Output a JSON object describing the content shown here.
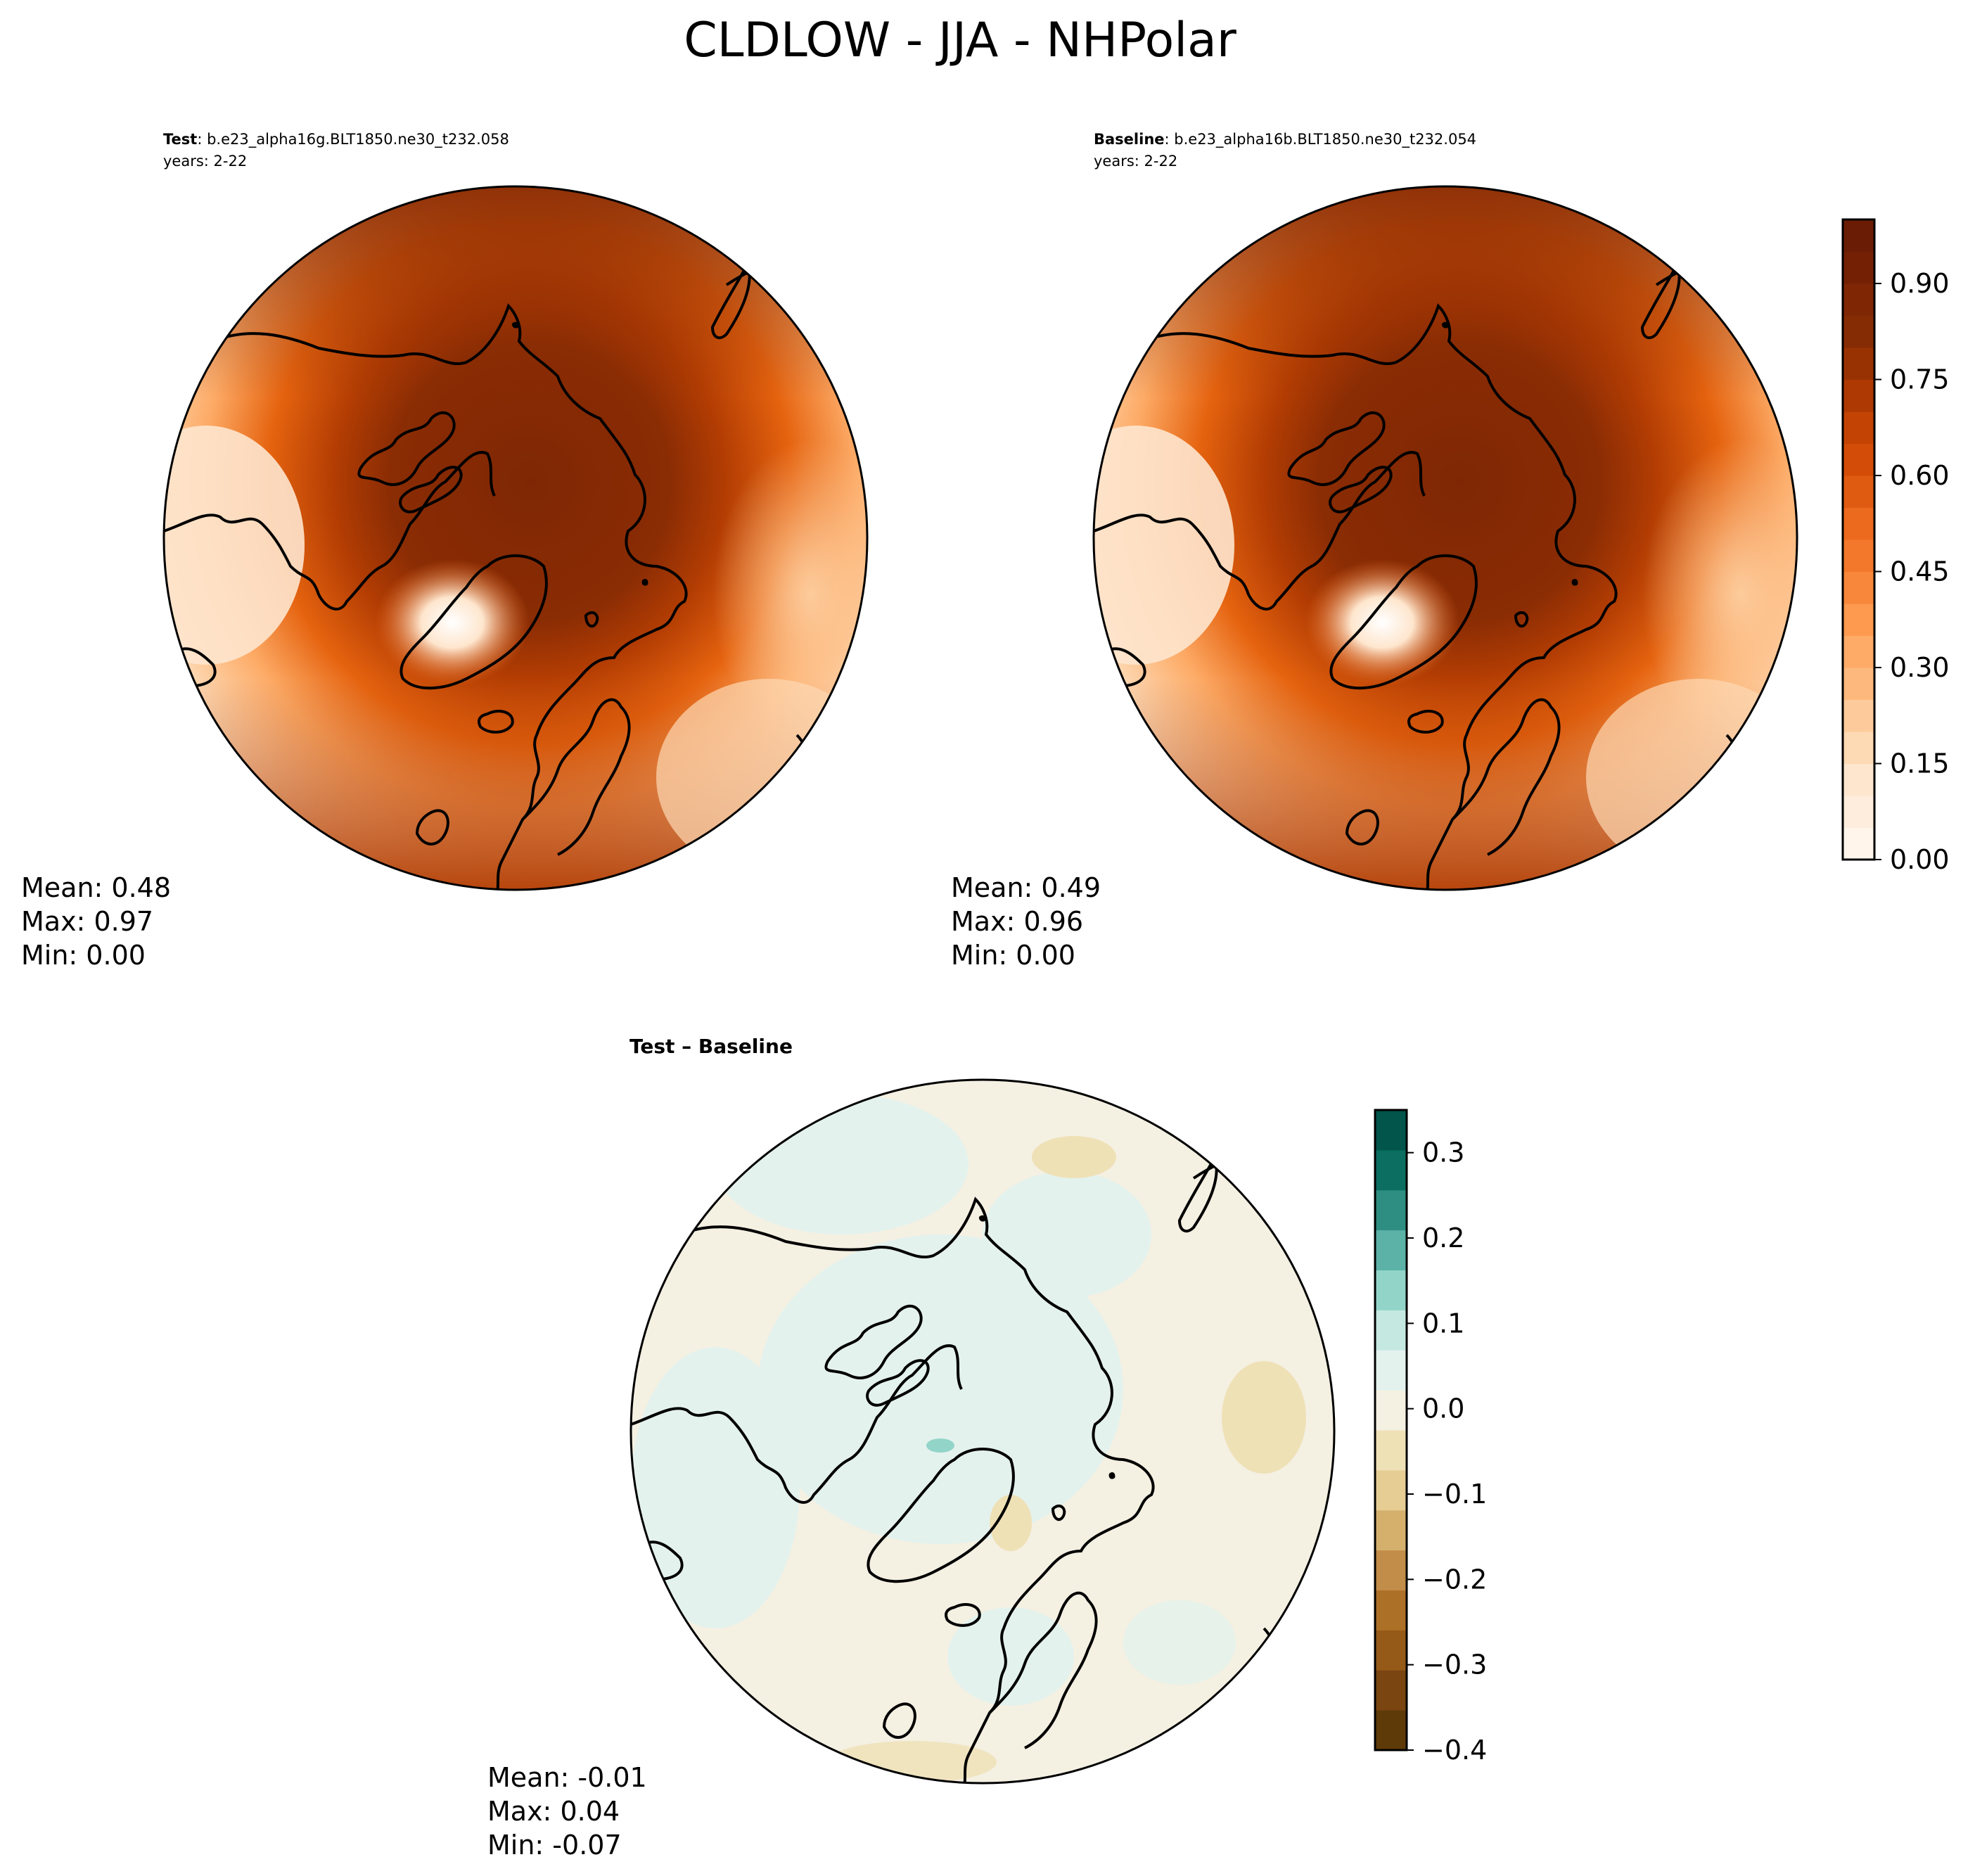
{
  "figure": {
    "title": "CLDLOW - JJA - NHPolar"
  },
  "chart_data": [
    {
      "type": "heatmap",
      "panel": "test",
      "projection": "north-polar-stereographic",
      "title_bold": "Test",
      "title_rest": ": b.e23_alpha16g.BLT1850.ne30_t232.058",
      "subtitle": "years: 2-22",
      "stats": {
        "mean": "Mean:  0.48",
        "max": "Max:  0.97",
        "min": "Min:  0.00"
      },
      "colormap": "Oranges",
      "levels": [
        0.0,
        0.05,
        0.1,
        0.15,
        0.2,
        0.25,
        0.3,
        0.35,
        0.4,
        0.45,
        0.5,
        0.55,
        0.6,
        0.65,
        0.7,
        0.75,
        0.8,
        0.85,
        0.9,
        0.95,
        1.0
      ],
      "range": [
        0.0,
        1.0
      ]
    },
    {
      "type": "heatmap",
      "panel": "baseline",
      "projection": "north-polar-stereographic",
      "title_bold": "Baseline",
      "title_rest": ": b.e23_alpha16b.BLT1850.ne30_t232.054",
      "subtitle": "years: 2-22",
      "stats": {
        "mean": "Mean:  0.49",
        "max": "Max:  0.96",
        "min": "Min:  0.00"
      },
      "colormap": "Oranges",
      "range": [
        0.0,
        1.0
      ],
      "colorbar": {
        "ticks": [
          "0.00",
          "0.15",
          "0.30",
          "0.45",
          "0.60",
          "0.75",
          "0.90"
        ],
        "tick_values": [
          0.0,
          0.15,
          0.3,
          0.45,
          0.6,
          0.75,
          0.9
        ],
        "min": 0.0,
        "max": 1.0,
        "colors": [
          "#fff5eb",
          "#feeddc",
          "#fee6ce",
          "#fdd9b4",
          "#fdcb9b",
          "#fdb97d",
          "#fdab67",
          "#fd9a50",
          "#f8873b",
          "#f3782b",
          "#ec6a1e",
          "#e05b12",
          "#d34d08",
          "#c24303",
          "#ae3903",
          "#993203",
          "#862c04",
          "#7f2704",
          "#732005",
          "#6a1c05"
        ]
      }
    },
    {
      "type": "heatmap",
      "panel": "difference",
      "projection": "north-polar-stereographic",
      "title_bold": "Test – Baseline",
      "stats": {
        "mean": "Mean: -0.01",
        "max": "Max:  0.04",
        "min": "Min: -0.07"
      },
      "colormap": "BrBG",
      "range": [
        -0.4,
        0.35
      ],
      "colorbar": {
        "ticks": [
          "−0.4",
          "−0.3",
          "−0.2",
          "−0.1",
          "0.0",
          "0.1",
          "0.2",
          "0.3"
        ],
        "tick_values": [
          -0.4,
          -0.3,
          -0.2,
          -0.1,
          0.0,
          0.1,
          0.2,
          0.3
        ],
        "min": -0.4,
        "max": 0.35,
        "colors": [
          "#5e3a08",
          "#7a4510",
          "#955a17",
          "#ad7027",
          "#c28d48",
          "#d5b06d",
          "#e6cd94",
          "#efe1b6",
          "#f4f0e2",
          "#e4f2ee",
          "#c5e9e1",
          "#93d4c8",
          "#5cb2a6",
          "#2e8e81",
          "#0b6e60",
          "#01554a"
        ]
      }
    }
  ],
  "colors": {
    "ocean_dark": "#7f2704",
    "coast_line": "#000000",
    "diff_neutral": "#f4f0e2"
  }
}
